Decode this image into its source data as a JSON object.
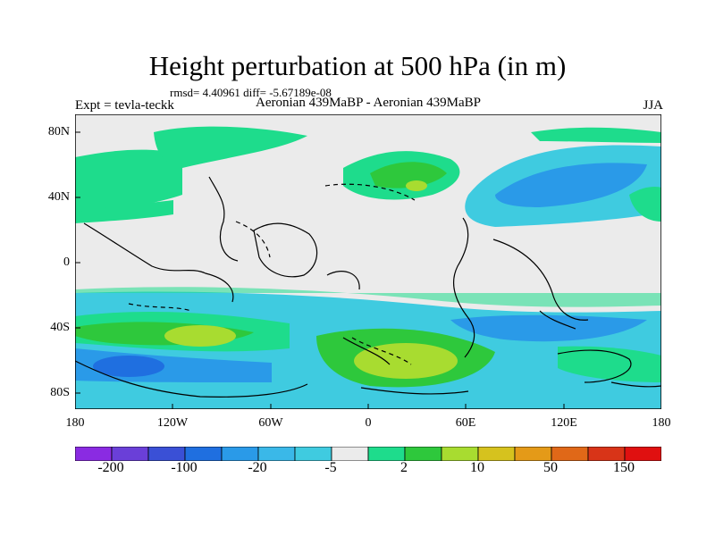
{
  "title": "Height perturbation at 500 hPa (in m)",
  "stats": "rmsd= 4.40961 diff= -5.67189e-08",
  "left_label": "Expt = tevla-teckk",
  "center_label": "Aeronian 439MaBP - Aeronian 439MaBP",
  "right_label": "JJA",
  "lat_ticks": [
    "80N",
    "40N",
    "0",
    "40S",
    "80S"
  ],
  "lon_ticks": [
    "180",
    "120W",
    "60W",
    "0",
    "60E",
    "120E",
    "180"
  ],
  "colorbar": {
    "colors": [
      "#8a2be2",
      "#6a3fd8",
      "#3a50d6",
      "#1f6fe0",
      "#2a9ae8",
      "#3ab8e8",
      "#3fcbe0",
      "#ebebeb",
      "#1edc8c",
      "#2ec83c",
      "#a8dc30",
      "#d6c21e",
      "#e49a18",
      "#e06818",
      "#d83418",
      "#e01010"
    ],
    "labels": [
      "-200",
      "-100",
      "-20",
      "-5",
      "2",
      "10",
      "50",
      "150"
    ]
  }
}
